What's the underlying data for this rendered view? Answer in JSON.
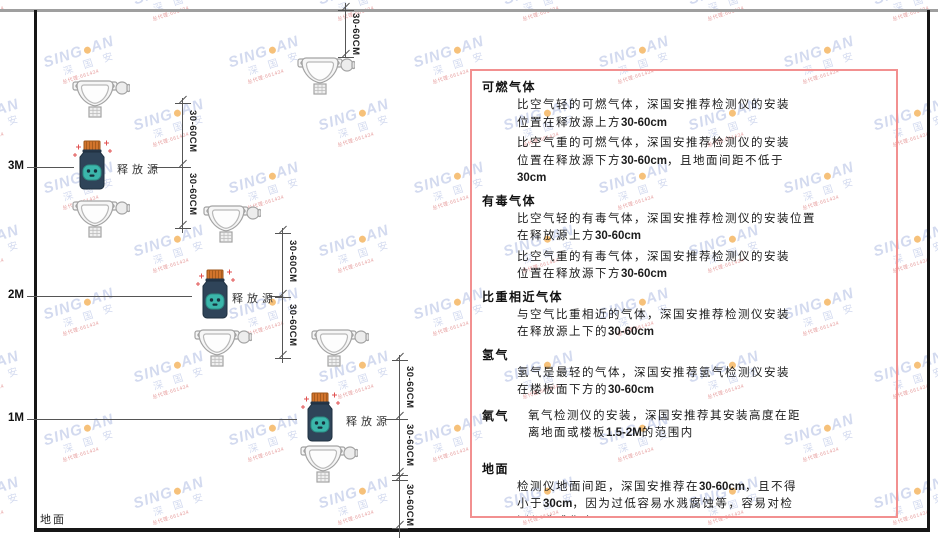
{
  "watermark": {
    "brand_prefix": "SING",
    "brand_suffix": "AN",
    "brand_cn": "深 国 安",
    "note": "总代理:661434"
  },
  "diagram": {
    "release_source_label": "释放源",
    "dim_label": "30-60CM",
    "heights": {
      "h3": "3M",
      "h2": "2M",
      "h1": "1M"
    },
    "ground_label": "地面"
  },
  "panel": {
    "sections": [
      {
        "heading": "可燃气体",
        "paras": [
          "比空气轻的可燃气体，深国安推荐检测仪的安装\n位置在释放源上方30-60cm",
          "比空气重的可燃气体，深国安推荐检测仪的安装\n位置在释放源下方30-60cm，且地面间距不低于\n30cm"
        ]
      },
      {
        "heading": "有毒气体",
        "paras": [
          "比空气轻的有毒气体，深国安推荐检测仪的安装位置\n在释放源上方30-60cm",
          "比空气重的有毒气体，深国安推荐检测仪的安装\n位置在释放源下方30-60cm"
        ]
      },
      {
        "heading": "比重相近气体",
        "paras": [
          "与空气比重相近的气体，深国安推荐检测仪安装\n在释放源上下的30-60cm"
        ]
      },
      {
        "heading": "氢气",
        "paras": [
          "氢气是最轻的气体，深国安推荐氢气检测仪安装\n在楼板面下方的30-60cm"
        ]
      },
      {
        "heading": "氧气",
        "paras": [
          "氧气检测仪的安装，深国安推荐其安装高度在距\n离地面或楼板1.5-2M的范围内"
        ]
      },
      {
        "heading": "地面",
        "paras": [
          "检测仪地面间距，深国安推荐在30-60cm，且不得\n小于30cm，因为过低容易水溅腐蚀等，容易对检\n测仪造成伤害"
        ]
      }
    ]
  }
}
